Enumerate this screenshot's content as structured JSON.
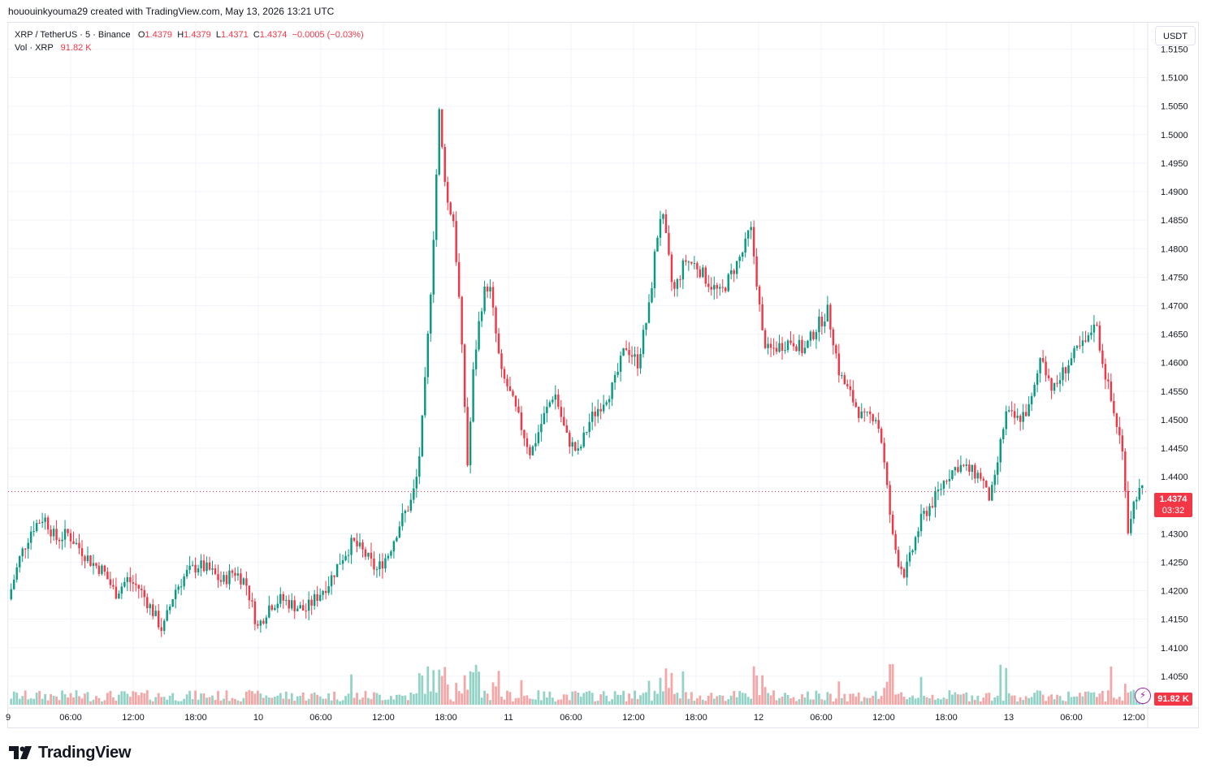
{
  "header": {
    "caption": "hououinkyouma29 created with TradingView.com, May 13, 2026 13:21 UTC"
  },
  "legend": {
    "symbol": "XRP / TetherUS · 5 · Binance",
    "open_label": "O",
    "open": "1.4379",
    "high_label": "H",
    "high": "1.4379",
    "low_label": "L",
    "low": "1.4371",
    "close_label": "C",
    "close": "1.4374",
    "change": "−0.0005 (−0.03%)",
    "vol_label": "Vol · XRP",
    "vol_value": "91.82 K"
  },
  "currency_button": "USDT",
  "last_price_tag": {
    "price": "1.4374",
    "countdown": "03:32"
  },
  "volume_tag": "91.82 K",
  "brand": {
    "name": "TradingView"
  },
  "colors": {
    "up": "#089981",
    "down": "#f23645",
    "up_vol": "#93d2c6",
    "down_vol": "#f5a6a6",
    "grid": "#f0f3fa",
    "price_line": "#f23645"
  },
  "chart_data": {
    "type": "candlestick",
    "symbol": "XRP / TetherUS",
    "interval": "5",
    "exchange": "Binance",
    "ylim": [
      1.4,
      1.5165
    ],
    "y_ticks": [
      "1.5150",
      "1.5100",
      "1.5050",
      "1.5000",
      "1.4950",
      "1.4900",
      "1.4850",
      "1.4800",
      "1.4750",
      "1.4700",
      "1.4650",
      "1.4600",
      "1.4550",
      "1.4500",
      "1.4450",
      "1.4400",
      "1.4350",
      "1.4300",
      "1.4250",
      "1.4200",
      "1.4150",
      "1.4100",
      "1.4050"
    ],
    "x_ticks": [
      "9",
      "06:00",
      "12:00",
      "18:00",
      "10",
      "06:00",
      "12:00",
      "18:00",
      "11",
      "06:00",
      "12:00",
      "18:00",
      "12",
      "06:00",
      "12:00",
      "18:00",
      "13",
      "06:00",
      "12:00"
    ],
    "price_path": [
      [
        0,
        1.4185
      ],
      [
        2,
        1.426
      ],
      [
        4,
        1.431
      ],
      [
        6,
        1.433
      ],
      [
        8,
        1.429
      ],
      [
        10,
        1.43
      ],
      [
        12,
        1.4275
      ],
      [
        14,
        1.425
      ],
      [
        16,
        1.4235
      ],
      [
        18,
        1.4195
      ],
      [
        20,
        1.422
      ],
      [
        22,
        1.4205
      ],
      [
        24,
        1.417
      ],
      [
        26,
        1.413
      ],
      [
        28,
        1.42
      ],
      [
        30,
        1.423
      ],
      [
        32,
        1.4245
      ],
      [
        34,
        1.4235
      ],
      [
        36,
        1.4215
      ],
      [
        38,
        1.4235
      ],
      [
        40,
        1.4215
      ],
      [
        42,
        1.4135
      ],
      [
        44,
        1.4175
      ],
      [
        46,
        1.4185
      ],
      [
        48,
        1.4175
      ],
      [
        50,
        1.4165
      ],
      [
        52,
        1.419
      ],
      [
        54,
        1.4215
      ],
      [
        56,
        1.4255
      ],
      [
        58,
        1.4285
      ],
      [
        60,
        1.4265
      ],
      [
        62,
        1.4235
      ],
      [
        64,
        1.4265
      ],
      [
        66,
        1.432
      ],
      [
        68,
        1.436
      ],
      [
        69,
        1.441
      ],
      [
        70,
        1.453
      ],
      [
        71,
        1.47
      ],
      [
        72,
        1.49
      ],
      [
        72.5,
        1.505
      ],
      [
        73,
        1.498
      ],
      [
        74,
        1.488
      ],
      [
        75,
        1.485
      ],
      [
        76,
        1.47
      ],
      [
        77,
        1.45
      ],
      [
        77.5,
        1.439
      ],
      [
        78,
        1.455
      ],
      [
        79,
        1.465
      ],
      [
        80,
        1.472
      ],
      [
        81,
        1.474
      ],
      [
        82,
        1.466
      ],
      [
        83,
        1.458
      ],
      [
        84,
        1.456
      ],
      [
        86,
        1.45
      ],
      [
        88,
        1.444
      ],
      [
        90,
        1.45
      ],
      [
        92,
        1.455
      ],
      [
        94,
        1.447
      ],
      [
        96,
        1.444
      ],
      [
        98,
        1.45
      ],
      [
        100,
        1.453
      ],
      [
        102,
        1.456
      ],
      [
        104,
        1.463
      ],
      [
        106,
        1.46
      ],
      [
        108,
        1.47
      ],
      [
        109,
        1.48
      ],
      [
        110,
        1.487
      ],
      [
        111,
        1.48
      ],
      [
        112,
        1.472
      ],
      [
        114,
        1.478
      ],
      [
        116,
        1.477
      ],
      [
        118,
        1.474
      ],
      [
        120,
        1.472
      ],
      [
        122,
        1.476
      ],
      [
        124,
        1.48
      ],
      [
        125,
        1.484
      ],
      [
        126,
        1.475
      ],
      [
        127,
        1.465
      ],
      [
        128,
        1.462
      ],
      [
        130,
        1.463
      ],
      [
        132,
        1.464
      ],
      [
        134,
        1.462
      ],
      [
        136,
        1.466
      ],
      [
        138,
        1.469
      ],
      [
        139,
        1.464
      ],
      [
        140,
        1.458
      ],
      [
        142,
        1.454
      ],
      [
        144,
        1.45
      ],
      [
        146,
        1.451
      ],
      [
        147,
        1.447
      ],
      [
        148,
        1.438
      ],
      [
        149,
        1.429
      ],
      [
        150,
        1.425
      ],
      [
        151,
        1.423
      ],
      [
        152,
        1.426
      ],
      [
        153,
        1.43
      ],
      [
        154,
        1.433
      ],
      [
        156,
        1.436
      ],
      [
        158,
        1.44
      ],
      [
        160,
        1.442
      ],
      [
        162,
        1.441
      ],
      [
        164,
        1.44
      ],
      [
        165,
        1.436
      ],
      [
        166,
        1.438
      ],
      [
        167,
        1.445
      ],
      [
        168,
        1.451
      ],
      [
        170,
        1.45
      ],
      [
        172,
        1.452
      ],
      [
        173,
        1.456
      ],
      [
        174,
        1.462
      ],
      [
        175,
        1.458
      ],
      [
        176,
        1.455
      ],
      [
        178,
        1.459
      ],
      [
        180,
        1.462
      ],
      [
        182,
        1.464
      ],
      [
        183,
        1.468
      ],
      [
        184,
        1.462
      ],
      [
        185,
        1.457
      ],
      [
        186,
        1.452
      ],
      [
        187,
        1.448
      ],
      [
        188,
        1.442
      ],
      [
        188.5,
        1.43
      ],
      [
        189,
        1.433
      ],
      [
        190,
        1.437
      ],
      [
        191,
        1.4374
      ]
    ],
    "last_price": 1.4374,
    "last_volume": "91.82 K"
  }
}
